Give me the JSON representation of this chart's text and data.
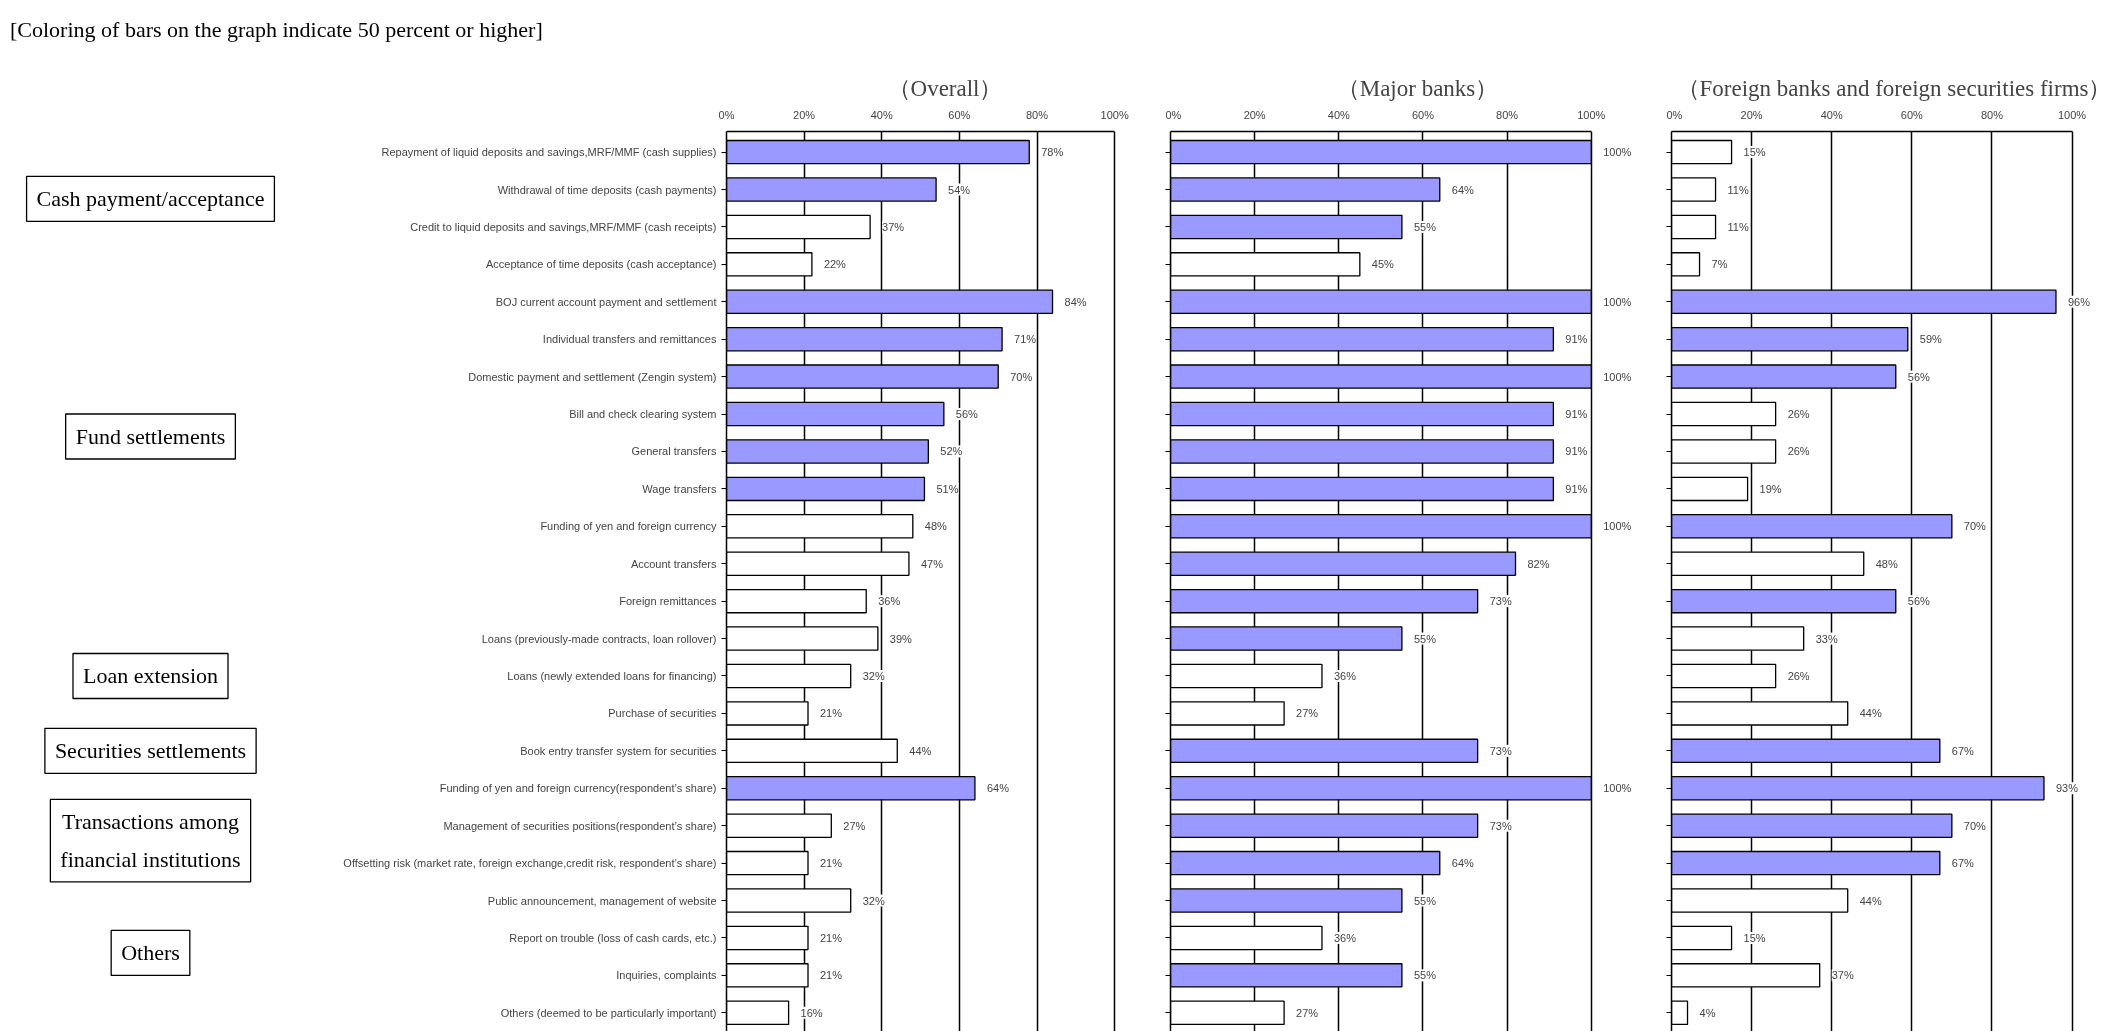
{
  "chart_data": [
    {
      "type": "bar",
      "orientation": "horizontal",
      "title": "（Overall）",
      "categories": [
        "Repayment of liquid deposits and savings,MRF/MMF (cash supplies)",
        "Withdrawal of time deposits (cash payments)",
        "Credit to liquid deposits and savings,MRF/MMF (cash receipts)",
        "Acceptance of time deposits (cash acceptance)",
        "BOJ current account payment and settlement",
        "Individual transfers and remittances",
        "Domestic payment and settlement (Zengin system)",
        "Bill and check clearing system",
        "General transfers",
        "Wage transfers",
        "Funding of yen and foreign currency",
        "Account transfers",
        "Foreign remittances",
        "Loans (previously-made contracts, loan rollover)",
        "Loans (newly extended loans for financing)",
        "Purchase of securities",
        "Book entry transfer system for securities",
        "Funding of yen and foreign currency(respondent’s share)",
        "Management of securities positions(respondent’s share)",
        "Offsetting risk (market rate, foreign exchange,credit risk, respondent’s share)",
        "Public announcement, management of website",
        "Report on trouble (loss of cash cards, etc.)",
        "Inquiries, complaints",
        "Others (deemed to be particularly important)"
      ],
      "values": [
        78,
        54,
        37,
        22,
        84,
        71,
        70,
        56,
        52,
        51,
        48,
        47,
        36,
        39,
        32,
        21,
        44,
        64,
        27,
        21,
        32,
        21,
        21,
        16
      ],
      "value_labels": [
        "78%",
        "54%",
        "37%",
        "22%",
        "84%",
        "71%",
        "70%",
        "56%",
        "52%",
        "51%",
        "48%",
        "47%",
        "36%",
        "39%",
        "32%",
        "21%",
        "44%",
        "64%",
        "27%",
        "21%",
        "32%",
        "21%",
        "21%",
        "16%"
      ],
      "colors": [
        "#9999ff",
        "#9999ff",
        "#ffffff",
        "#ffffff",
        "#9999ff",
        "#9999ff",
        "#9999ff",
        "#9999ff",
        "#9999ff",
        "#9999ff",
        "#ffffff",
        "#ffffff",
        "#ffffff",
        "#ffffff",
        "#ffffff",
        "#ffffff",
        "#ffffff",
        "#9999ff",
        "#ffffff",
        "#ffffff",
        "#ffffff",
        "#ffffff",
        "#ffffff",
        "#ffffff"
      ],
      "xlim": [
        0,
        100
      ],
      "xticks": [
        {
          "value": 0,
          "label": "0%"
        },
        {
          "value": 20,
          "label": "20%"
        },
        {
          "value": 40,
          "label": "40%"
        },
        {
          "value": 60,
          "label": "60%"
        },
        {
          "value": 80,
          "label": "80%"
        },
        {
          "value": 100,
          "label": "100%"
        }
      ],
      "grid": "x",
      "annotations": [
        "[Coloring of bars on the graph indicate 50 percent or higher]",
        "Cash payment/acceptance",
        "Fund settlements",
        "Loan extension",
        "Securities settlements",
        "Transactions among financial institutions",
        "Others"
      ]
    },
    {
      "type": "bar",
      "orientation": "horizontal",
      "title": "（Major banks）",
      "tick_labels": "x",
      "categories": [
        null,
        null,
        null,
        null,
        null,
        null,
        null,
        null,
        null,
        null,
        null,
        null,
        null,
        null,
        null,
        null,
        null,
        null,
        null,
        null,
        null,
        null,
        null,
        null
      ],
      "values": [
        100,
        64,
        55,
        45,
        100,
        91,
        100,
        91,
        91,
        91,
        100,
        82,
        73,
        55,
        36,
        27,
        73,
        100,
        73,
        64,
        55,
        36,
        55,
        27
      ],
      "value_labels": [
        "100%",
        "64%",
        "55%",
        "45%",
        "100%",
        "91%",
        "100%",
        "91%",
        "91%",
        "91%",
        "100%",
        "82%",
        "73%",
        "55%",
        "36%",
        "27%",
        "73%",
        "100%",
        "73%",
        "64%",
        "55%",
        "36%",
        "55%",
        "27%"
      ],
      "colors": [
        "#9999ff",
        "#9999ff",
        "#9999ff",
        "#ffffff",
        "#9999ff",
        "#9999ff",
        "#9999ff",
        "#9999ff",
        "#9999ff",
        "#9999ff",
        "#9999ff",
        "#9999ff",
        "#9999ff",
        "#9999ff",
        "#ffffff",
        "#ffffff",
        "#9999ff",
        "#9999ff",
        "#9999ff",
        "#9999ff",
        "#9999ff",
        "#ffffff",
        "#9999ff",
        "#ffffff"
      ],
      "xlim": [
        0,
        100
      ],
      "xticks": [
        {
          "value": 0,
          "label": "0%"
        },
        {
          "value": 20,
          "label": "20%"
        },
        {
          "value": 40,
          "label": "40%"
        },
        {
          "value": 60,
          "label": "60%"
        },
        {
          "value": 80,
          "label": "80%"
        },
        {
          "value": 100,
          "label": "100%"
        }
      ],
      "grid": "x"
    },
    {
      "type": "bar",
      "orientation": "horizontal",
      "title": "（Foreign banks and foreign securities firms）",
      "tick_labels": "x",
      "categories": [
        null,
        null,
        null,
        null,
        null,
        null,
        null,
        null,
        null,
        null,
        null,
        null,
        null,
        null,
        null,
        null,
        null,
        null,
        null,
        null,
        null,
        null,
        null,
        null
      ],
      "values": [
        15,
        11,
        11,
        7,
        96,
        59,
        56,
        26,
        26,
        19,
        70,
        48,
        56,
        33,
        26,
        44,
        67,
        93,
        70,
        67,
        44,
        15,
        37,
        4
      ],
      "value_labels": [
        "15%",
        "11%",
        "11%",
        "7%",
        "96%",
        "59%",
        "56%",
        "26%",
        "26%",
        "19%",
        "70%",
        "48%",
        "56%",
        "33%",
        "26%",
        "44%",
        "67%",
        "93%",
        "70%",
        "67%",
        "44%",
        "15%",
        "37%",
        "4%"
      ],
      "colors": [
        "#ffffff",
        "#ffffff",
        "#ffffff",
        "#ffffff",
        "#9999ff",
        "#9999ff",
        "#9999ff",
        "#ffffff",
        "#ffffff",
        "#ffffff",
        "#9999ff",
        "#ffffff",
        "#9999ff",
        "#ffffff",
        "#ffffff",
        "#ffffff",
        "#9999ff",
        "#9999ff",
        "#9999ff",
        "#9999ff",
        "#ffffff",
        "#ffffff",
        "#ffffff",
        "#ffffff"
      ],
      "xlim": [
        0,
        100
      ],
      "xticks": [
        {
          "value": 0,
          "label": "0%"
        },
        {
          "value": 20,
          "label": "20%"
        },
        {
          "value": 40,
          "label": "40%"
        },
        {
          "value": 60,
          "label": "60%"
        },
        {
          "value": 80,
          "label": "80%"
        },
        {
          "value": 100,
          "label": "100%"
        }
      ],
      "grid": "x"
    }
  ]
}
